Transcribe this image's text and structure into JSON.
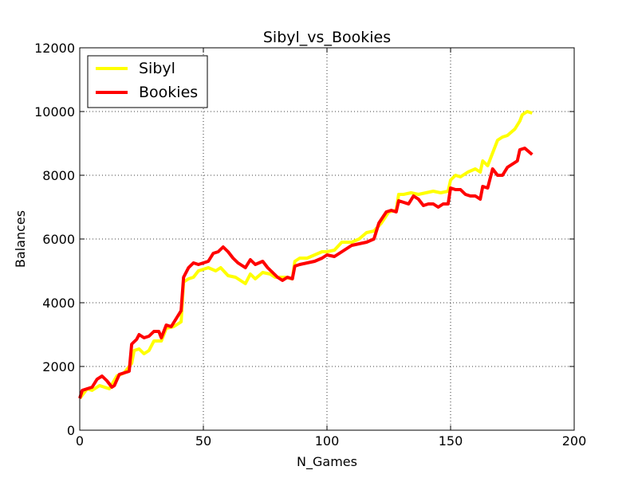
{
  "chart_data": {
    "type": "line",
    "title": "Sibyl_vs_Bookies",
    "xlabel": "N_Games",
    "ylabel": "Balances",
    "xlim": [
      0,
      200
    ],
    "ylim": [
      0,
      12000
    ],
    "xticks": [
      0,
      50,
      100,
      150,
      200
    ],
    "yticks": [
      0,
      2000,
      4000,
      6000,
      8000,
      10000,
      12000
    ],
    "xtick_labels": [
      "0",
      "50",
      "100",
      "150",
      "200"
    ],
    "ytick_labels": [
      "0",
      "2000",
      "4000",
      "6000",
      "8000",
      "10000",
      "12000"
    ],
    "grid": true,
    "legend_position": "top-left",
    "series": [
      {
        "name": "Sibyl",
        "color": "#ffff00",
        "points": [
          [
            0,
            1000
          ],
          [
            3,
            1300
          ],
          [
            5,
            1250
          ],
          [
            8,
            1400
          ],
          [
            10,
            1350
          ],
          [
            12,
            1300
          ],
          [
            15,
            1700
          ],
          [
            18,
            1800
          ],
          [
            21,
            2100
          ],
          [
            22,
            2500
          ],
          [
            24,
            2550
          ],
          [
            26,
            2400
          ],
          [
            28,
            2500
          ],
          [
            30,
            2800
          ],
          [
            33,
            2800
          ],
          [
            35,
            3200
          ],
          [
            38,
            3250
          ],
          [
            41,
            3400
          ],
          [
            42,
            4650
          ],
          [
            44,
            4750
          ],
          [
            46,
            4800
          ],
          [
            48,
            5000
          ],
          [
            50,
            5050
          ],
          [
            52,
            5100
          ],
          [
            55,
            5000
          ],
          [
            57,
            5100
          ],
          [
            60,
            4850
          ],
          [
            63,
            4800
          ],
          [
            67,
            4600
          ],
          [
            69,
            4900
          ],
          [
            71,
            4750
          ],
          [
            74,
            4950
          ],
          [
            77,
            4900
          ],
          [
            79,
            4800
          ],
          [
            83,
            4800
          ],
          [
            86,
            4750
          ],
          [
            87,
            5300
          ],
          [
            89,
            5400
          ],
          [
            92,
            5400
          ],
          [
            95,
            5500
          ],
          [
            98,
            5600
          ],
          [
            100,
            5600
          ],
          [
            103,
            5650
          ],
          [
            106,
            5900
          ],
          [
            110,
            5900
          ],
          [
            113,
            6000
          ],
          [
            116,
            6200
          ],
          [
            119,
            6250
          ],
          [
            122,
            6500
          ],
          [
            125,
            6850
          ],
          [
            128,
            6900
          ],
          [
            129,
            7400
          ],
          [
            131,
            7400
          ],
          [
            134,
            7450
          ],
          [
            137,
            7400
          ],
          [
            140,
            7450
          ],
          [
            143,
            7500
          ],
          [
            146,
            7450
          ],
          [
            149,
            7500
          ],
          [
            150,
            7850
          ],
          [
            152,
            8000
          ],
          [
            154,
            7950
          ],
          [
            157,
            8100
          ],
          [
            160,
            8200
          ],
          [
            162,
            8100
          ],
          [
            163,
            8450
          ],
          [
            165,
            8300
          ],
          [
            167,
            8700
          ],
          [
            169,
            9100
          ],
          [
            171,
            9200
          ],
          [
            173,
            9250
          ],
          [
            176,
            9450
          ],
          [
            178,
            9700
          ],
          [
            179,
            9900
          ],
          [
            181,
            10000
          ],
          [
            183,
            9950
          ]
        ]
      },
      {
        "name": "Bookies",
        "color": "#ff0000",
        "points": [
          [
            0,
            1000
          ],
          [
            1,
            1250
          ],
          [
            3,
            1300
          ],
          [
            5,
            1350
          ],
          [
            7,
            1600
          ],
          [
            9,
            1700
          ],
          [
            11,
            1550
          ],
          [
            13,
            1350
          ],
          [
            14,
            1400
          ],
          [
            16,
            1750
          ],
          [
            18,
            1800
          ],
          [
            20,
            1850
          ],
          [
            21,
            2700
          ],
          [
            23,
            2850
          ],
          [
            24,
            3000
          ],
          [
            26,
            2900
          ],
          [
            28,
            2950
          ],
          [
            30,
            3100
          ],
          [
            32,
            3100
          ],
          [
            33,
            2900
          ],
          [
            35,
            3300
          ],
          [
            37,
            3250
          ],
          [
            39,
            3500
          ],
          [
            41,
            3750
          ],
          [
            42,
            4800
          ],
          [
            44,
            5100
          ],
          [
            46,
            5250
          ],
          [
            48,
            5200
          ],
          [
            50,
            5250
          ],
          [
            52,
            5300
          ],
          [
            54,
            5550
          ],
          [
            56,
            5600
          ],
          [
            58,
            5750
          ],
          [
            60,
            5600
          ],
          [
            62,
            5400
          ],
          [
            64,
            5250
          ],
          [
            67,
            5100
          ],
          [
            69,
            5350
          ],
          [
            71,
            5200
          ],
          [
            74,
            5300
          ],
          [
            76,
            5100
          ],
          [
            78,
            4950
          ],
          [
            80,
            4800
          ],
          [
            82,
            4700
          ],
          [
            84,
            4800
          ],
          [
            86,
            4750
          ],
          [
            87,
            5150
          ],
          [
            89,
            5200
          ],
          [
            92,
            5250
          ],
          [
            95,
            5300
          ],
          [
            98,
            5400
          ],
          [
            100,
            5500
          ],
          [
            103,
            5450
          ],
          [
            106,
            5600
          ],
          [
            110,
            5800
          ],
          [
            113,
            5850
          ],
          [
            116,
            5900
          ],
          [
            119,
            6000
          ],
          [
            121,
            6500
          ],
          [
            124,
            6850
          ],
          [
            126,
            6900
          ],
          [
            128,
            6850
          ],
          [
            129,
            7200
          ],
          [
            131,
            7150
          ],
          [
            133,
            7100
          ],
          [
            135,
            7350
          ],
          [
            137,
            7250
          ],
          [
            139,
            7050
          ],
          [
            141,
            7100
          ],
          [
            143,
            7100
          ],
          [
            145,
            7000
          ],
          [
            147,
            7100
          ],
          [
            149,
            7100
          ],
          [
            150,
            7600
          ],
          [
            152,
            7550
          ],
          [
            154,
            7550
          ],
          [
            156,
            7400
          ],
          [
            158,
            7350
          ],
          [
            160,
            7350
          ],
          [
            162,
            7250
          ],
          [
            163,
            7650
          ],
          [
            165,
            7600
          ],
          [
            167,
            8200
          ],
          [
            169,
            8000
          ],
          [
            171,
            8000
          ],
          [
            173,
            8250
          ],
          [
            175,
            8350
          ],
          [
            177,
            8450
          ],
          [
            178,
            8800
          ],
          [
            180,
            8850
          ],
          [
            183,
            8650
          ]
        ]
      }
    ]
  }
}
